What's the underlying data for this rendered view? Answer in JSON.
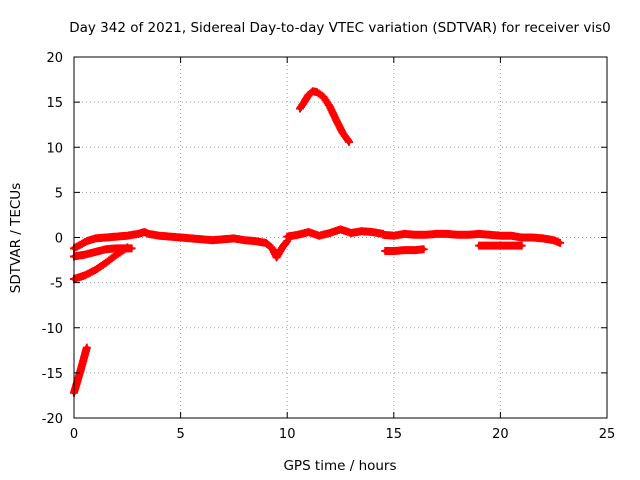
{
  "chart_data": {
    "type": "scatter",
    "title": "Day 342 of 2021, Sidereal Day-to-day VTEC variation (SDTVAR) for receiver vis0",
    "xlabel": "GPS time / hours",
    "ylabel": "SDTVAR / TECUs",
    "xlim": [
      0,
      25
    ],
    "ylim": [
      -20,
      20
    ],
    "x_ticks": [
      0,
      5,
      10,
      15,
      20,
      25
    ],
    "y_ticks": [
      -20,
      -15,
      -10,
      -5,
      0,
      5,
      10,
      15,
      20
    ],
    "x_tick_labels": [
      "0",
      "5",
      "10",
      "15",
      "20",
      "25"
    ],
    "y_tick_labels": [
      "-20",
      "-15",
      "-10",
      "-5",
      "0",
      "5",
      "10",
      "15",
      "20"
    ],
    "grid": true,
    "marker": "plus",
    "color": "#ff0000",
    "series": [
      {
        "name": "s1",
        "x": [
          0.0,
          0.15,
          0.3,
          0.45,
          0.6
        ],
        "y": [
          -17.2,
          -16.0,
          -14.8,
          -13.5,
          -12.2
        ]
      },
      {
        "name": "s2",
        "x": [
          0.0,
          0.5,
          1.0,
          1.5,
          2.0,
          2.5
        ],
        "y": [
          -4.6,
          -4.2,
          -3.6,
          -2.8,
          -1.9,
          -1.1
        ]
      },
      {
        "name": "s3",
        "x": [
          0.0,
          0.5,
          1.0,
          1.5,
          2.0,
          2.7
        ],
        "y": [
          -2.1,
          -1.9,
          -1.6,
          -1.3,
          -1.2,
          -1.2
        ]
      },
      {
        "name": "s4",
        "x": [
          0.0,
          0.3,
          0.6,
          1.0,
          1.5,
          2.0,
          2.5,
          3.0,
          3.3,
          3.5,
          4.0,
          4.5,
          5.0,
          5.5,
          6.0,
          6.5,
          7.0,
          7.5,
          8.0,
          8.5,
          9.0,
          9.3,
          9.5,
          9.8,
          10.0
        ],
        "y": [
          -1.2,
          -0.8,
          -0.4,
          -0.1,
          0.0,
          0.1,
          0.2,
          0.4,
          0.6,
          0.4,
          0.2,
          0.1,
          0.0,
          -0.1,
          -0.2,
          -0.3,
          -0.2,
          -0.1,
          -0.3,
          -0.4,
          -0.6,
          -1.2,
          -2.2,
          -1.0,
          -0.4
        ]
      },
      {
        "name": "s5",
        "x": [
          10.0,
          10.5,
          11.0,
          11.5,
          12.0,
          12.5,
          13.0,
          13.5,
          14.0,
          14.5
        ],
        "y": [
          0.1,
          0.3,
          0.6,
          0.2,
          0.5,
          0.9,
          0.5,
          0.7,
          0.6,
          0.4
        ]
      },
      {
        "name": "s6",
        "x": [
          14.5,
          15.0,
          15.5,
          16.0,
          16.5,
          17.0,
          17.5,
          18.0,
          18.5,
          19.0,
          19.5,
          20.0,
          20.5,
          21.0,
          21.5,
          22.0,
          22.5,
          22.8
        ],
        "y": [
          0.3,
          0.2,
          0.4,
          0.3,
          0.3,
          0.4,
          0.4,
          0.3,
          0.3,
          0.4,
          0.3,
          0.2,
          0.2,
          0.0,
          0.0,
          -0.1,
          -0.3,
          -0.6
        ]
      },
      {
        "name": "s7",
        "x": [
          10.6,
          10.8,
          11.0,
          11.2,
          11.4,
          11.7,
          12.0,
          12.3,
          12.6,
          12.9
        ],
        "y": [
          14.3,
          15.0,
          15.8,
          16.2,
          16.1,
          15.6,
          14.5,
          13.0,
          11.6,
          10.6
        ]
      },
      {
        "name": "s8",
        "x": [
          14.6,
          15.0,
          15.5,
          16.0,
          16.4
        ],
        "y": [
          -1.5,
          -1.5,
          -1.4,
          -1.4,
          -1.3
        ]
      },
      {
        "name": "s9",
        "x": [
          19.0,
          19.5,
          20.0,
          20.5,
          21.0
        ],
        "y": [
          -0.9,
          -0.9,
          -0.9,
          -0.9,
          -0.9
        ]
      }
    ]
  }
}
